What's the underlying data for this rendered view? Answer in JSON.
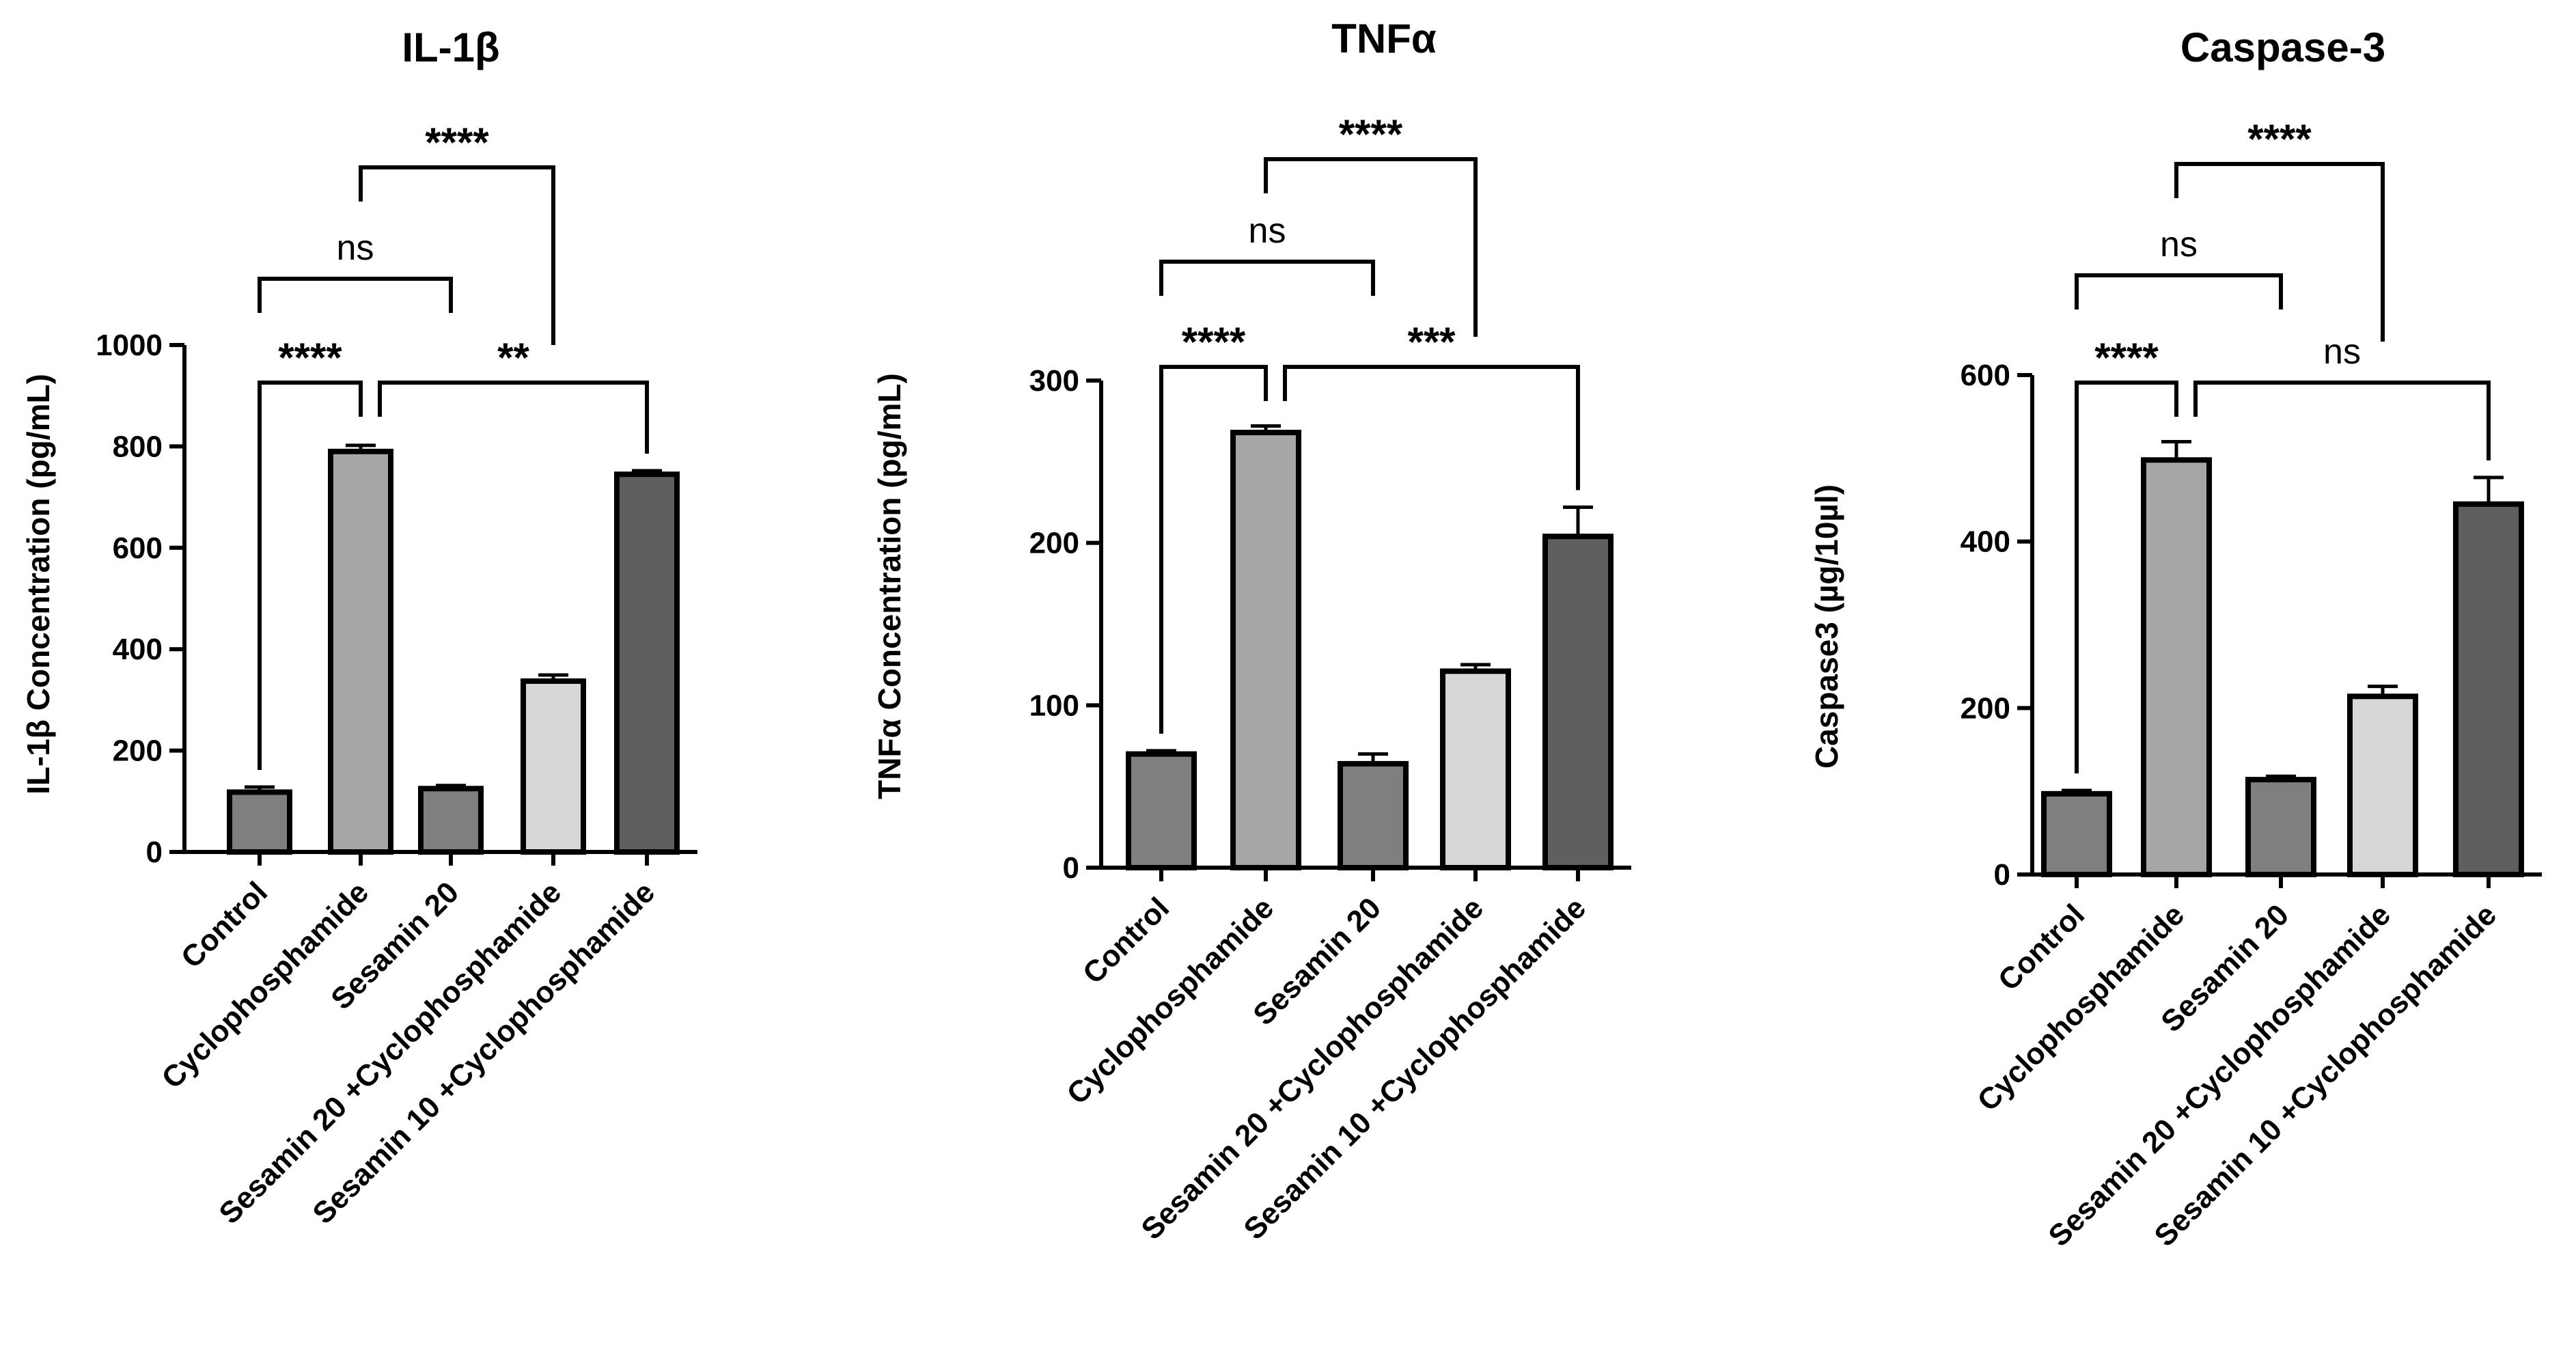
{
  "chart_data": [
    {
      "type": "bar",
      "title": "IL-1β",
      "xlabel": "",
      "ylabel": "IL-1β Concentration (pg/mL)",
      "ylim": [
        0,
        1000
      ],
      "yticks": [
        0,
        200,
        400,
        600,
        800,
        1000
      ],
      "categories": [
        "Control",
        "Cyclophosphamide",
        "Sesamin 20",
        "Sesamin 20 +Cyclophosphamide",
        "Sesamin 10 +Cyclophosphamide"
      ],
      "values": [
        118,
        790,
        125,
        337,
        745
      ],
      "errors": [
        10,
        12,
        6,
        12,
        7
      ],
      "colors": [
        "#7f7f7f",
        "#a6a6a8",
        "#7f7f7f",
        "#d7d7d7",
        "#5f5f5f"
      ],
      "annotations": [
        {
          "from": 0,
          "to": 1,
          "label": "****"
        },
        {
          "from": 1,
          "to": 4,
          "label": "**"
        },
        {
          "from": 0,
          "to": 2,
          "label": "ns"
        },
        {
          "from": 1,
          "to": 3,
          "label": "****"
        }
      ]
    },
    {
      "type": "bar",
      "title": "TNFα",
      "xlabel": "",
      "ylabel": "TNFα Concentration (pg/mL)",
      "ylim": [
        0,
        300
      ],
      "yticks": [
        0,
        100,
        200,
        300
      ],
      "categories": [
        "Control",
        "Cyclophosphamide",
        "Sesamin 20",
        "Sesamin 20 +Cyclophosphamide",
        "Sesamin 10 +Cyclophosphamide"
      ],
      "values": [
        70,
        268,
        64,
        121,
        204
      ],
      "errors": [
        2,
        4,
        6,
        4,
        18
      ],
      "colors": [
        "#7f7f7f",
        "#a6a6a8",
        "#7f7f7f",
        "#d7d7d7",
        "#5f5f5f"
      ],
      "annotations": [
        {
          "from": 0,
          "to": 1,
          "label": "****"
        },
        {
          "from": 1,
          "to": 4,
          "label": "***"
        },
        {
          "from": 0,
          "to": 2,
          "label": "ns"
        },
        {
          "from": 1,
          "to": 3,
          "label": "****"
        }
      ]
    },
    {
      "type": "bar",
      "title": "Caspase-3",
      "xlabel": "",
      "ylabel": "Caspase3 (µg/10µl)",
      "ylim": [
        0,
        600
      ],
      "yticks": [
        0,
        200,
        400,
        600
      ],
      "categories": [
        "Control",
        "Cyclophosphamide",
        "Sesamin 20",
        "Sesamin 20 +Cyclophosphamide",
        "Sesamin 10 +Cyclophosphamide"
      ],
      "values": [
        97,
        498,
        114,
        214,
        445
      ],
      "errors": [
        4,
        22,
        4,
        12,
        32
      ],
      "colors": [
        "#7f7f7f",
        "#a6a6a8",
        "#7f7f7f",
        "#d7d7d7",
        "#5f5f5f"
      ],
      "annotations": [
        {
          "from": 0,
          "to": 1,
          "label": "****"
        },
        {
          "from": 1,
          "to": 4,
          "label": "ns"
        },
        {
          "from": 0,
          "to": 2,
          "label": "ns"
        },
        {
          "from": 1,
          "to": 3,
          "label": "****"
        }
      ]
    }
  ]
}
